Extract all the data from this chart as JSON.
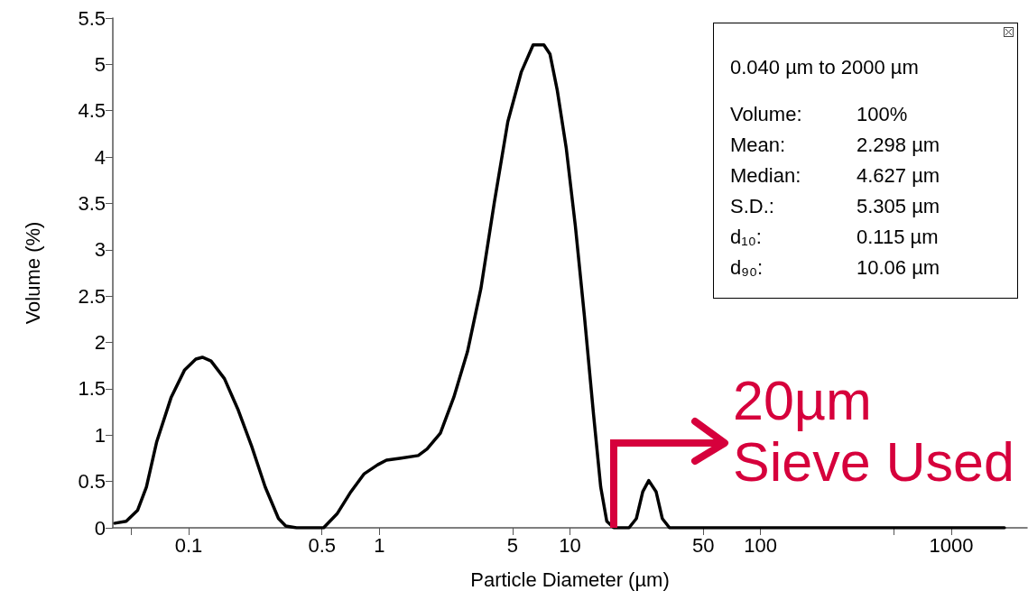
{
  "chart_data": {
    "type": "line",
    "xlabel": "Particle Diameter (µm)",
    "ylabel": "Volume (%)",
    "log": "x",
    "grid": false,
    "marker": "none",
    "line_style": "solid",
    "xlim": [
      0.04,
      2500
    ],
    "ylim": [
      0,
      5.5
    ],
    "xticks": [
      {
        "value": 0.05,
        "label": null
      },
      0.1,
      0.5,
      1,
      5,
      10,
      50,
      100,
      {
        "value": 500,
        "label": null
      },
      1000
    ],
    "yticks": [
      0,
      0.5,
      1,
      1.5,
      2,
      2.5,
      3,
      3.5,
      4,
      4.5,
      5,
      5.5
    ],
    "series": [
      {
        "color": "#000000",
        "x": [
          0.041,
          0.047,
          0.054,
          0.06,
          0.068,
          0.081,
          0.095,
          0.109,
          0.118,
          0.131,
          0.154,
          0.182,
          0.214,
          0.252,
          0.296,
          0.323,
          0.368,
          0.51,
          0.6,
          0.71,
          0.83,
          0.98,
          1.09,
          1.28,
          1.6,
          1.78,
          2.09,
          2.46,
          2.9,
          3.41,
          4.01,
          4.72,
          5.56,
          6.41,
          7.3,
          7.86,
          8.58,
          9.57,
          10.67,
          11.9,
          13.3,
          14.5,
          15.6,
          17,
          20.4,
          22.3,
          24.1,
          25.9,
          28.3,
          30.5,
          33.3,
          39.3,
          1900
        ],
        "values": [
          0.05,
          0.07,
          0.19,
          0.44,
          0.93,
          1.41,
          1.7,
          1.82,
          1.84,
          1.8,
          1.61,
          1.27,
          0.88,
          0.44,
          0.1,
          0.02,
          0,
          0,
          0.15,
          0.39,
          0.58,
          0.68,
          0.73,
          0.75,
          0.78,
          0.85,
          1.02,
          1.41,
          1.9,
          2.58,
          3.51,
          4.38,
          4.92,
          5.21,
          5.21,
          5.11,
          4.72,
          4.09,
          3.26,
          2.29,
          1.22,
          0.44,
          0.07,
          0,
          0,
          0.1,
          0.39,
          0.51,
          0.39,
          0.1,
          0,
          0,
          0
        ]
      }
    ],
    "annotations": [
      "0.040 µm to 2000 µm",
      "Volume: 100%",
      "Mean: 2.298 µm",
      "Median: 4.627 µm",
      "S.D.: 5.305 µm",
      "d₁₀: 0.115 µm",
      "d₉₀: 10.06 µm",
      "20µm Sieve Used"
    ]
  }
}
